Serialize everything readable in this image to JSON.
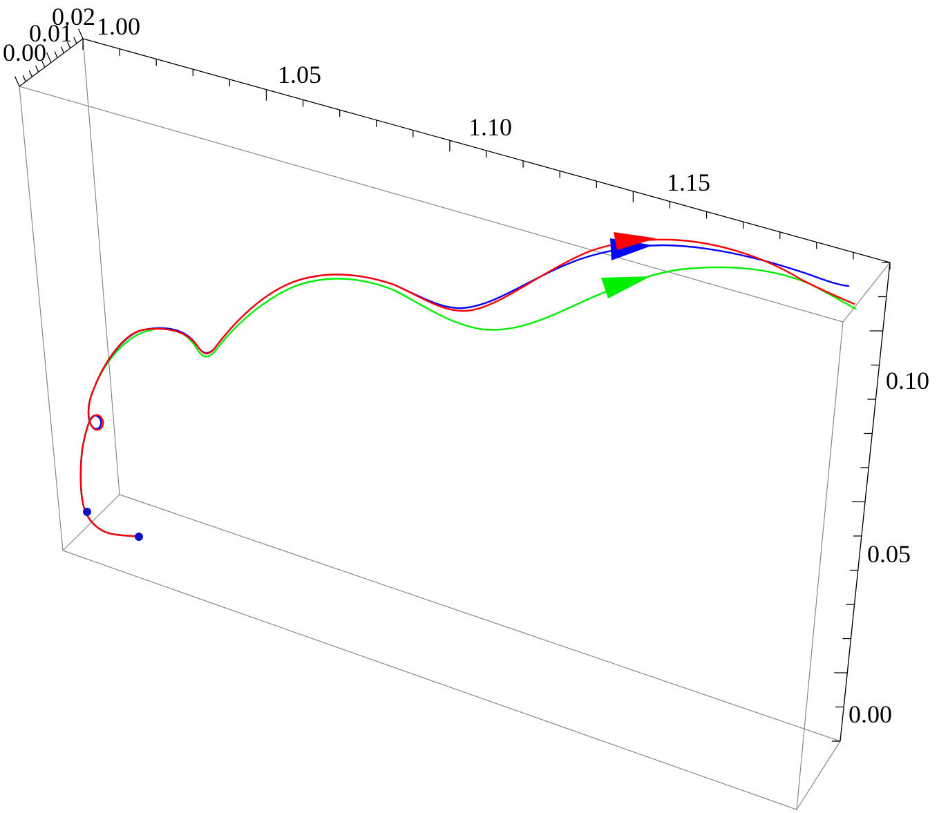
{
  "chart_data": {
    "type": "line",
    "subtype": "3d-trajectory",
    "title": "",
    "x_axis": {
      "label": "",
      "range": [
        1.0,
        1.18
      ],
      "ticks": [
        "1.00",
        "1.05",
        "1.10",
        "1.15"
      ]
    },
    "y_axis": {
      "label": "",
      "range": [
        0.0,
        0.02
      ],
      "ticks": [
        "0.00",
        "0.01",
        "0.02"
      ]
    },
    "z_axis": {
      "label": "",
      "range": [
        -0.01,
        0.13
      ],
      "ticks": [
        "0.00",
        "0.05",
        "0.10"
      ]
    },
    "grid": false,
    "legend": "none",
    "series": [
      {
        "color": "#ff0000",
        "role": "trajectory",
        "arrow_at_end": true
      },
      {
        "color": "#0000ff",
        "role": "trajectory",
        "arrow_at_end": true
      },
      {
        "color": "#00ee00",
        "role": "trajectory",
        "arrow_at_end": true
      }
    ],
    "markers": [
      {
        "color": "#1010c8",
        "shape": "sphere",
        "meaning": "start point"
      },
      {
        "color": "#1010c8",
        "shape": "sphere",
        "meaning": "start point"
      }
    ]
  }
}
